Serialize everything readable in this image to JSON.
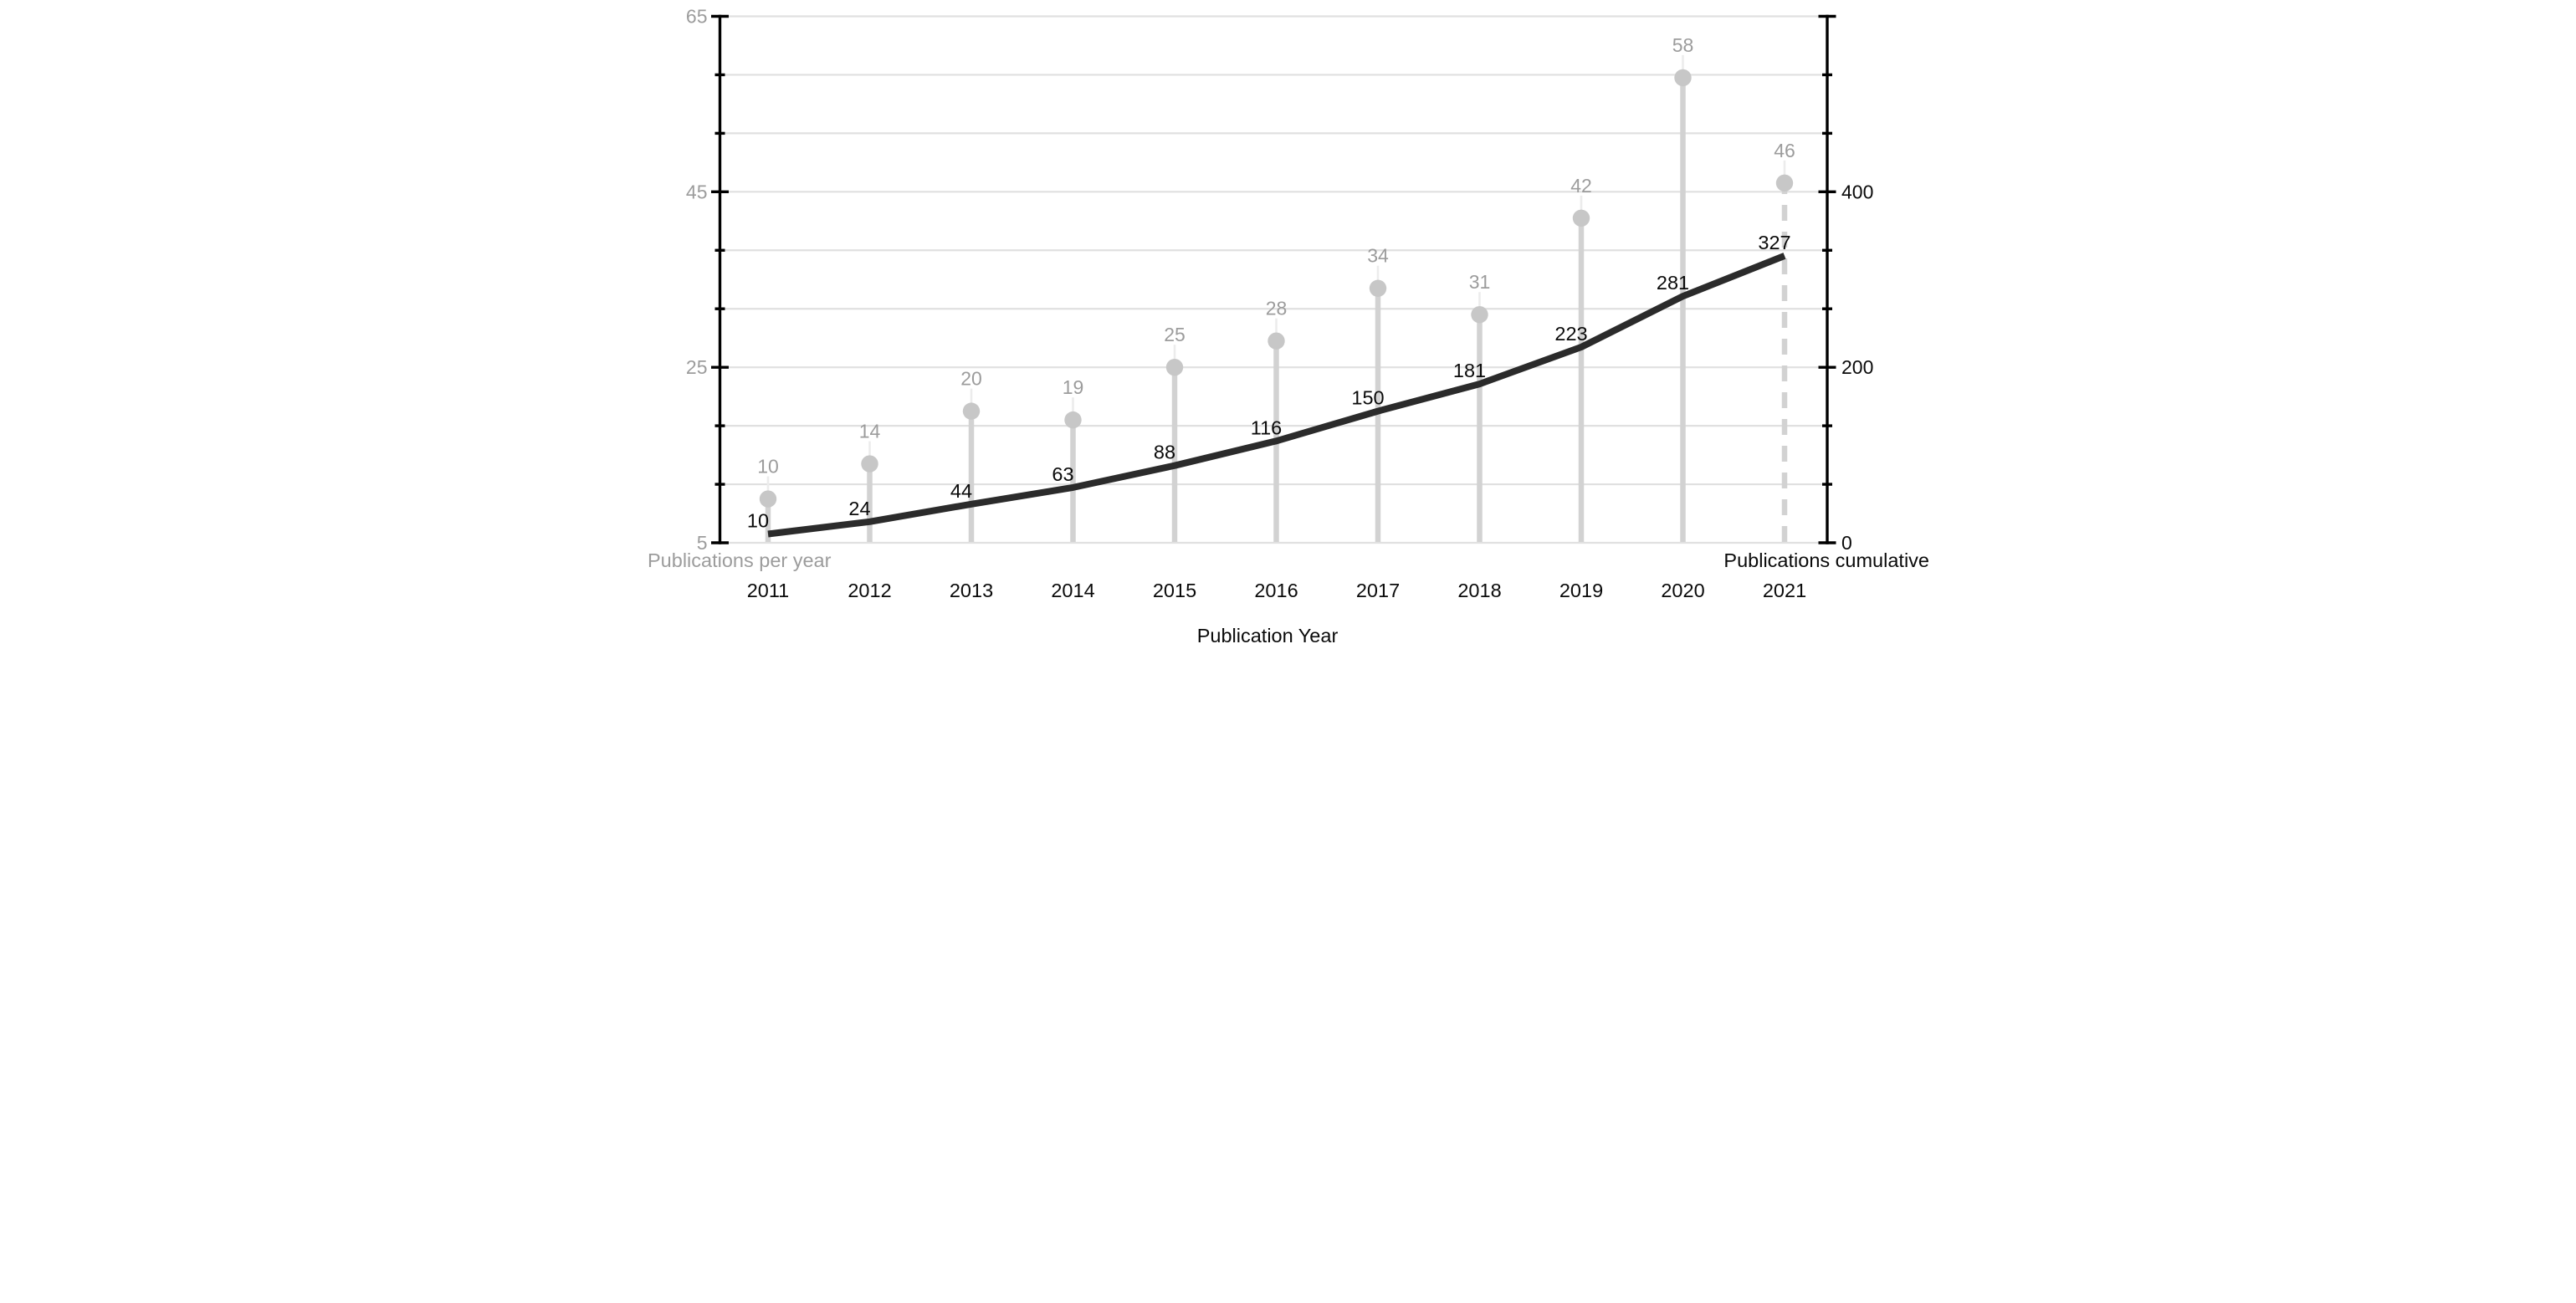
{
  "chart_data": {
    "type": "line",
    "description": "Dual-axis publication chart: gray lollipop stems show publications per year (left axis), thick dark line shows cumulative publications (right axis).",
    "categories": [
      "2011",
      "2012",
      "2013",
      "2014",
      "2015",
      "2016",
      "2017",
      "2018",
      "2019",
      "2020",
      "2021"
    ],
    "series": [
      {
        "name": "Publications per year",
        "style": "lollipop",
        "axis": "left",
        "values": [
          10,
          14,
          20,
          19,
          25,
          28,
          34,
          31,
          42,
          58,
          46
        ],
        "labels": [
          "10",
          "14",
          "20",
          "19",
          "25",
          "28",
          "34",
          "31",
          "42",
          "58",
          "46"
        ],
        "last_stem_dashed": true
      },
      {
        "name": "Publications cumulative",
        "style": "line",
        "axis": "right",
        "values": [
          10,
          24,
          44,
          63,
          88,
          116,
          150,
          181,
          223,
          281,
          327
        ],
        "labels": [
          "10",
          "24",
          "44",
          "63",
          "88",
          "116",
          "150",
          "181",
          "223",
          "281",
          "327"
        ]
      }
    ],
    "left_axis": {
      "title": "Publications per year",
      "min": 5,
      "max": 65,
      "tick_labels": [
        "65",
        "45",
        "25",
        "5"
      ],
      "tick_values": [
        65,
        45,
        25,
        5
      ],
      "minor_ticks_per_interval": 2
    },
    "right_axis": {
      "title": "Publications cumulative",
      "min": 0,
      "max": 600,
      "tick_labels": [
        "400",
        "200",
        "0"
      ],
      "tick_values": [
        400,
        200,
        0
      ],
      "minor_ticks_per_interval": 2
    },
    "x_axis": {
      "title": "Publication Year",
      "labels": [
        "2011",
        "2012",
        "2013",
        "2014",
        "2015",
        "2016",
        "2017",
        "2018",
        "2019",
        "2020",
        "2021"
      ]
    },
    "grid": true,
    "legend": "none",
    "colors": {
      "grid_line": "#e0e0e0",
      "axis_line": "#000000",
      "gray_text": "#9c9c9c",
      "black_text": "#0a0a0a",
      "stem": "#d2d2d2",
      "stem_leader": "#ececec",
      "dot_fill": "#c7c7c7",
      "cumulative_line": "#2b2b2b",
      "background": "#ffffff"
    }
  }
}
